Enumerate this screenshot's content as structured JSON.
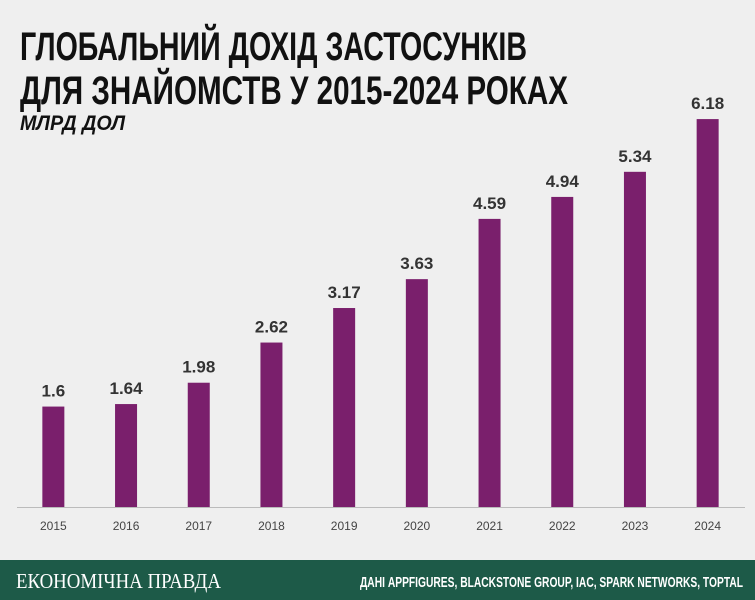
{
  "chart_data": {
    "type": "bar",
    "title": [
      "ГЛОБАЛЬНИЙ ДОХІД ЗАСТОСУНКІВ",
      "ДЛЯ ЗНАЙОМСТВ У 2015-2024 РОКАХ"
    ],
    "subtitle": "МЛРД ДОЛ",
    "categories": [
      "2015",
      "2016",
      "2017",
      "2018",
      "2019",
      "2020",
      "2021",
      "2022",
      "2023",
      "2024"
    ],
    "values": [
      1.6,
      1.64,
      1.98,
      2.62,
      3.17,
      3.63,
      4.59,
      4.94,
      5.34,
      6.18
    ],
    "color": "#7a1f6c",
    "ylim": [
      0,
      6.5
    ]
  },
  "footer": {
    "brand": "ЕКОНОМІЧНА ПРАВДА",
    "source": "ДАНІ APPFIGURES, BLACKSTONE GROUP, IAC, SPARK NETWORKS, TOPTAL"
  }
}
